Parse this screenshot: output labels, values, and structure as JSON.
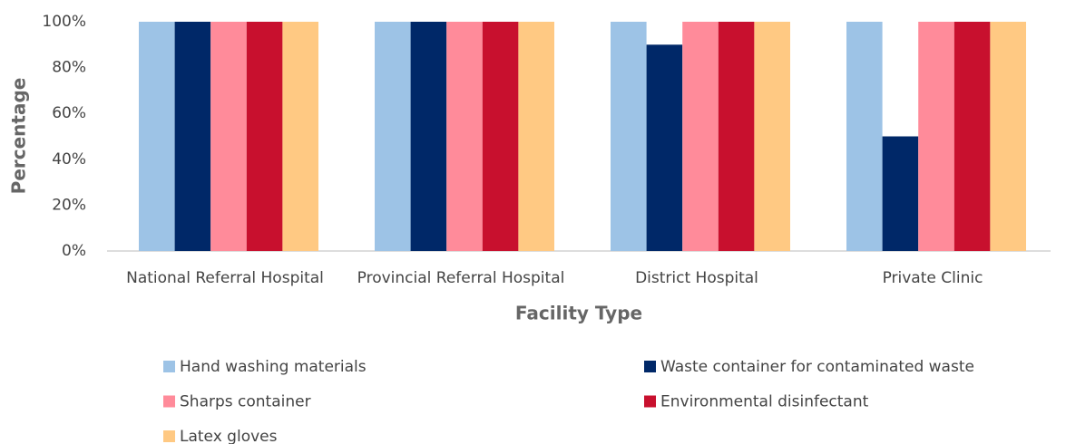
{
  "chart_data": {
    "type": "bar",
    "x_label": "Facility Type",
    "y_label": "Percentage",
    "categories": [
      "National Referral Hospital",
      "Provincial Referral Hospital",
      "District Hospital",
      "Private Clinic"
    ],
    "series": [
      {
        "name": "Hand washing materials",
        "color": "#9dc3e6",
        "values": [
          100,
          100,
          100,
          100
        ]
      },
      {
        "name": "Waste container for contaminated waste",
        "color": "#002868",
        "values": [
          100,
          100,
          90,
          50
        ]
      },
      {
        "name": "Sharps container",
        "color": "#ff8b9a",
        "values": [
          100,
          100,
          100,
          100
        ]
      },
      {
        "name": "Environmental disinfectant",
        "color": "#c8102e",
        "values": [
          100,
          100,
          100,
          100
        ]
      },
      {
        "name": "Latex gloves",
        "color": "#ffc983",
        "values": [
          100,
          100,
          100,
          100
        ]
      }
    ],
    "ylim": [
      0,
      100
    ],
    "yticks": [
      {
        "value": 0,
        "label": "0%"
      },
      {
        "value": 20,
        "label": "20%"
      },
      {
        "value": 40,
        "label": "40%"
      },
      {
        "value": 60,
        "label": "60%"
      },
      {
        "value": 80,
        "label": "80%"
      },
      {
        "value": 100,
        "label": "100%"
      }
    ],
    "grid": false,
    "legend": "bottom"
  }
}
